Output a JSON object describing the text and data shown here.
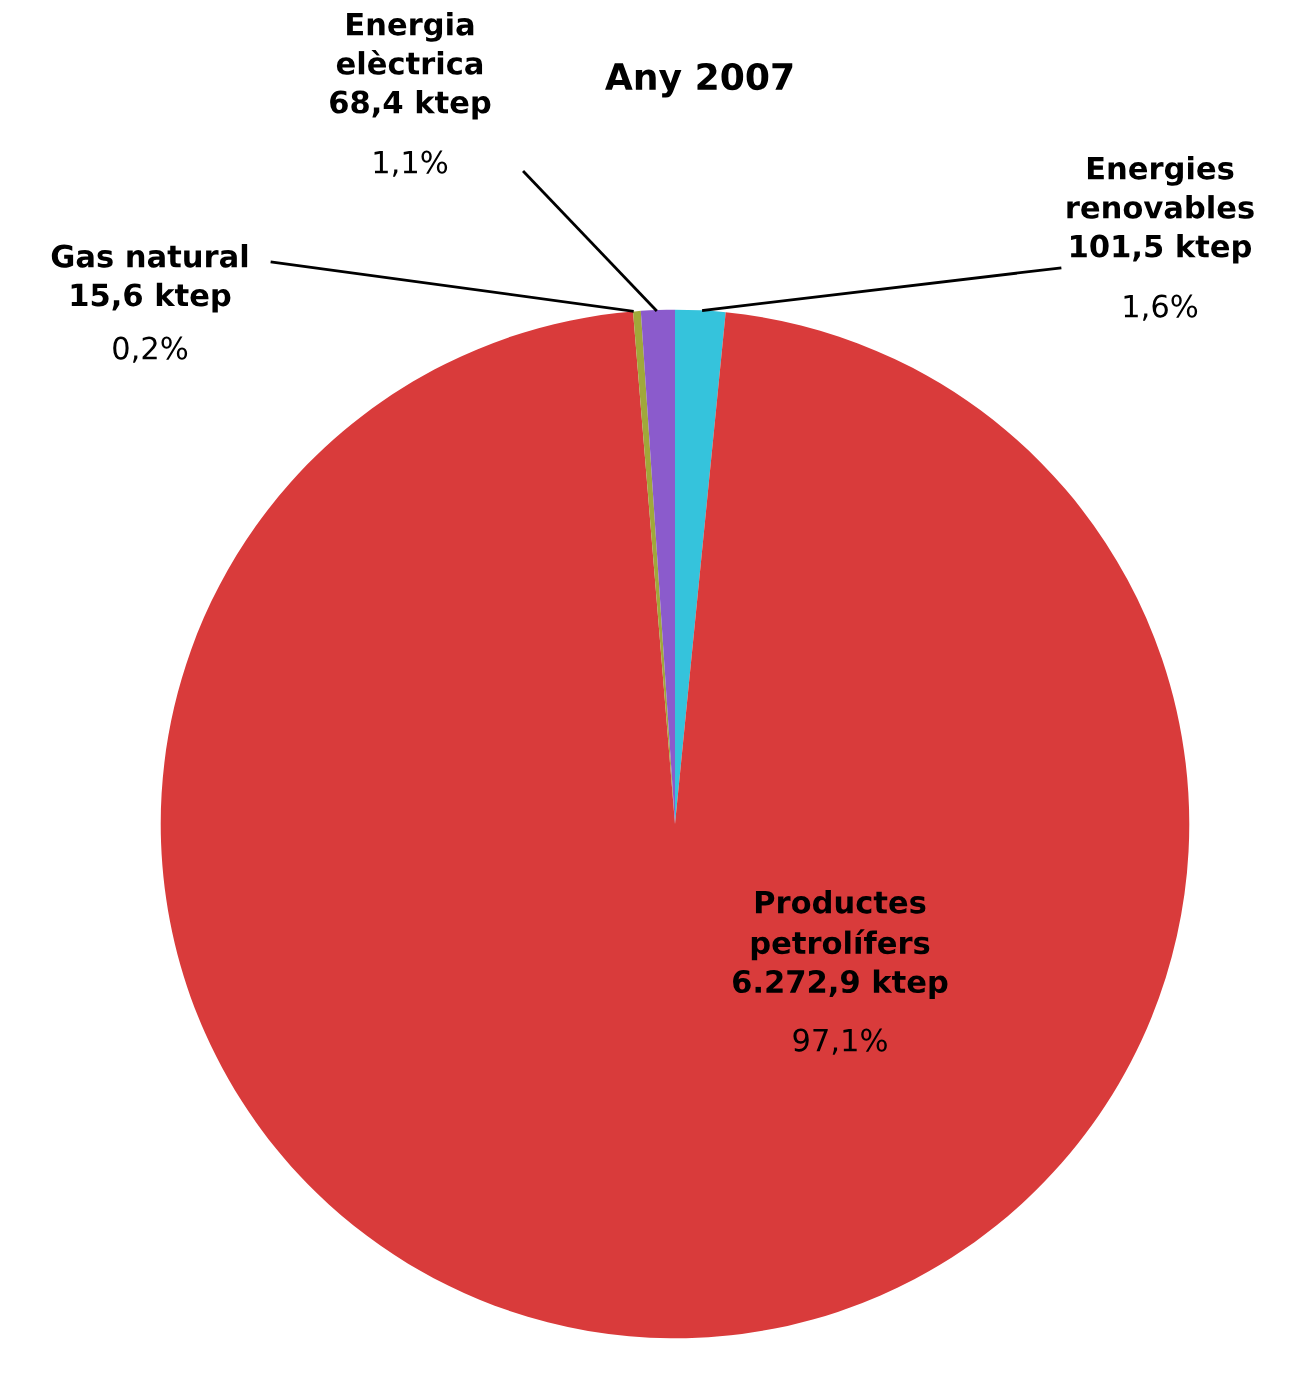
{
  "chart_data": {
    "type": "pie",
    "title": "Any 2007",
    "categories": [
      "Energies renovables",
      "Productes petrolífers",
      "Gas natural",
      "Energia elèctrica"
    ],
    "values": [
      101.5,
      6272.9,
      15.6,
      68.4
    ],
    "colors": [
      "#35c3dc",
      "#d93b3b",
      "#a0a83a",
      "#8b5bcc"
    ],
    "value_labels": [
      "101,5 ktep\n1,6%",
      "6.272,9 ktep\n97,1%",
      "15,6 ktep\n0,2%",
      "68,4 ktep\n1,1%"
    ]
  }
}
